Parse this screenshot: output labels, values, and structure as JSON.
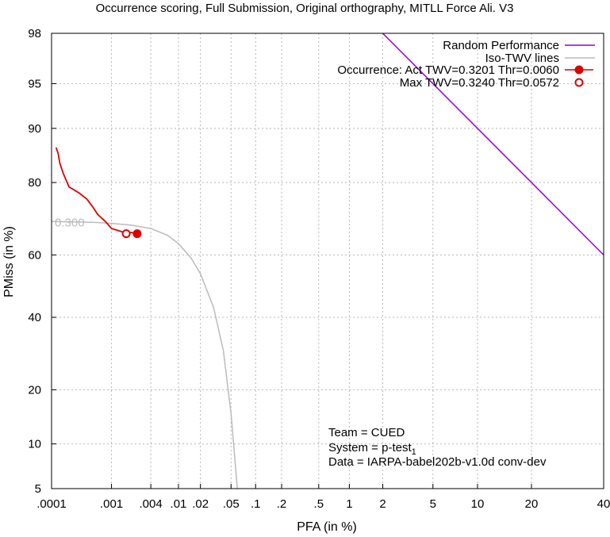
{
  "chart_data": {
    "type": "line",
    "title": "Occurrence scoring, Full Submission, Original orthography, MITLL Force Ali. V3",
    "xlabel": "PFA (in %)",
    "ylabel": "PMiss (in %)",
    "x_scale": "normal-deviate",
    "y_scale": "normal-deviate",
    "xlim": [
      0.0001,
      40
    ],
    "ylim": [
      5,
      98
    ],
    "grid": true,
    "legend_position": "top-right",
    "x_ticks": [
      {
        "value": 0.0001,
        "label": ".0001"
      },
      {
        "value": 0.001,
        "label": ".001"
      },
      {
        "value": 0.004,
        "label": ".004"
      },
      {
        "value": 0.01,
        "label": ".01"
      },
      {
        "value": 0.02,
        "label": ".02"
      },
      {
        "value": 0.05,
        "label": ".05"
      },
      {
        "value": 0.1,
        "label": ".1"
      },
      {
        "value": 0.2,
        "label": ".2"
      },
      {
        "value": 0.5,
        "label": ".5"
      },
      {
        "value": 1,
        "label": "1"
      },
      {
        "value": 2,
        "label": "2"
      },
      {
        "value": 5,
        "label": "5"
      },
      {
        "value": 10,
        "label": "10"
      },
      {
        "value": 20,
        "label": "20"
      },
      {
        "value": 40,
        "label": "40"
      }
    ],
    "y_ticks": [
      {
        "value": 5,
        "label": "5"
      },
      {
        "value": 10,
        "label": "10"
      },
      {
        "value": 20,
        "label": "20"
      },
      {
        "value": 40,
        "label": "40"
      },
      {
        "value": 60,
        "label": "60"
      },
      {
        "value": 80,
        "label": "80"
      },
      {
        "value": 90,
        "label": "90"
      },
      {
        "value": 95,
        "label": "95"
      },
      {
        "value": 98,
        "label": "98"
      }
    ],
    "series": [
      {
        "name": "Random Performance",
        "color": "#9400d3",
        "points": [
          [
            2,
            98
          ],
          [
            40,
            60
          ]
        ]
      },
      {
        "name": "Iso-TWV lines",
        "color": "#bbbbbb",
        "label": "0.300",
        "points": [
          [
            0.0001,
            70
          ],
          [
            0.0005,
            69.8
          ],
          [
            0.001,
            69.5
          ],
          [
            0.002,
            69
          ],
          [
            0.004,
            68
          ],
          [
            0.007,
            66
          ],
          [
            0.01,
            63.5
          ],
          [
            0.015,
            59
          ],
          [
            0.02,
            54
          ],
          [
            0.03,
            43
          ],
          [
            0.04,
            30
          ],
          [
            0.05,
            15
          ],
          [
            0.057,
            7
          ],
          [
            0.06,
            5
          ]
        ]
      },
      {
        "name": "Occurrence",
        "color": "#dd0000",
        "points": [
          [
            0.00012,
            87
          ],
          [
            0.00013,
            86
          ],
          [
            0.00014,
            84
          ],
          [
            0.00016,
            82
          ],
          [
            0.0002,
            79
          ],
          [
            0.0003,
            77.5
          ],
          [
            0.0004,
            76
          ],
          [
            0.0005,
            74
          ],
          [
            0.0006,
            72
          ],
          [
            0.0008,
            70
          ],
          [
            0.001,
            68
          ],
          [
            0.0015,
            67
          ],
          [
            0.0025,
            66.7
          ]
        ]
      }
    ],
    "markers": [
      {
        "name": "Act",
        "x": 0.0025,
        "y": 66.5,
        "filled": true,
        "color": "#dd0000"
      },
      {
        "name": "Max",
        "x": 0.0017,
        "y": 66.5,
        "filled": false,
        "color": "#dd0000"
      }
    ],
    "legend": [
      {
        "label": "Random Performance",
        "style": "line",
        "color": "#9400d3"
      },
      {
        "label": "Iso-TWV lines",
        "style": "line",
        "color": "#bbbbbb"
      },
      {
        "label": "Occurrence: Act  TWV=0.3201  Thr=0.0060",
        "style": "filled",
        "color": "#dd0000"
      },
      {
        "label": "Max  TWV=0.3240  Thr=0.0572",
        "style": "open",
        "color": "#dd0000"
      }
    ],
    "annotations": [
      "Team = CUED",
      "System = p-test",
      "Data = IARPA-babel202b-v1.0d conv-dev"
    ],
    "annotation_subscript": "1"
  }
}
